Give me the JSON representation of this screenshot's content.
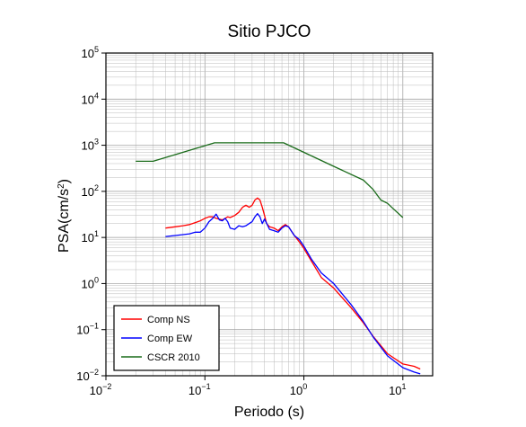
{
  "chart_data": {
    "type": "line",
    "title": "Sitio PJCO",
    "xlabel": "Periodo (s)",
    "ylabel": "PSA(cm/s²)",
    "ylabel_base": "PSA(cm/s",
    "ylabel_sup": "2",
    "ylabel_close": ")",
    "x_scale": "log",
    "y_scale": "log",
    "xlim": [
      0.01,
      20
    ],
    "ylim": [
      0.01,
      100000
    ],
    "grid": true,
    "legend_position": "bottom-left",
    "x_ticks": [
      {
        "base": "10",
        "exp": "−2"
      },
      {
        "base": "10",
        "exp": "−1"
      },
      {
        "base": "10",
        "exp": "0"
      },
      {
        "base": "10",
        "exp": "1"
      }
    ],
    "y_ticks": [
      {
        "base": "10",
        "exp": "−2"
      },
      {
        "base": "10",
        "exp": "−1"
      },
      {
        "base": "10",
        "exp": "0"
      },
      {
        "base": "10",
        "exp": "1"
      },
      {
        "base": "10",
        "exp": "2"
      },
      {
        "base": "10",
        "exp": "3"
      },
      {
        "base": "10",
        "exp": "4"
      },
      {
        "base": "10",
        "exp": "5"
      }
    ],
    "series": [
      {
        "name": "Comp NS",
        "color": "#ff0000",
        "x": [
          0.04,
          0.05,
          0.06,
          0.07,
          0.08,
          0.09,
          0.1,
          0.11,
          0.12,
          0.13,
          0.14,
          0.15,
          0.16,
          0.17,
          0.18,
          0.2,
          0.22,
          0.24,
          0.26,
          0.28,
          0.3,
          0.32,
          0.34,
          0.36,
          0.38,
          0.4,
          0.42,
          0.45,
          0.5,
          0.55,
          0.6,
          0.65,
          0.7,
          0.8,
          0.9,
          1.0,
          1.2,
          1.5,
          2.0,
          3.0,
          4.0,
          5.0,
          7.0,
          10.0,
          13.0,
          15.0
        ],
        "y": [
          16,
          17,
          18,
          19,
          21,
          23,
          26,
          28,
          28,
          26,
          25,
          24,
          26,
          28,
          27,
          30,
          35,
          45,
          50,
          45,
          50,
          65,
          72,
          65,
          45,
          30,
          20,
          17,
          16,
          14,
          17,
          19,
          17,
          11,
          8.0,
          5.8,
          3.0,
          1.35,
          0.8,
          0.3,
          0.14,
          0.072,
          0.03,
          0.018,
          0.016,
          0.014
        ]
      },
      {
        "name": "Comp EW",
        "color": "#0000ff",
        "x": [
          0.04,
          0.05,
          0.06,
          0.07,
          0.08,
          0.09,
          0.1,
          0.11,
          0.12,
          0.13,
          0.14,
          0.15,
          0.16,
          0.17,
          0.18,
          0.2,
          0.22,
          0.24,
          0.26,
          0.28,
          0.3,
          0.32,
          0.34,
          0.36,
          0.38,
          0.4,
          0.45,
          0.5,
          0.55,
          0.6,
          0.65,
          0.7,
          0.8,
          0.9,
          1.0,
          1.2,
          1.5,
          2.0,
          3.0,
          4.0,
          5.0,
          7.0,
          10.0,
          13.0,
          15.0
        ],
        "y": [
          10.5,
          11,
          11.5,
          12,
          13,
          13,
          16,
          22,
          26,
          32,
          24,
          23,
          26,
          22,
          16,
          15,
          18,
          17,
          18,
          20,
          22,
          28,
          33,
          28,
          20,
          25,
          15,
          14,
          13,
          16,
          18,
          17,
          11,
          9,
          6.5,
          3.3,
          1.7,
          1.0,
          0.35,
          0.15,
          0.07,
          0.027,
          0.015,
          0.012,
          0.011
        ]
      },
      {
        "name": "CSCR 2010",
        "color": "#1a6b1a",
        "x": [
          0.02,
          0.03,
          0.125,
          0.625,
          2.0,
          4.0,
          5.0,
          6.0,
          7.0,
          8.0,
          10.0
        ],
        "y": [
          450,
          450,
          1125,
          1125,
          350,
          175,
          110,
          65,
          55,
          42,
          27
        ]
      }
    ]
  }
}
